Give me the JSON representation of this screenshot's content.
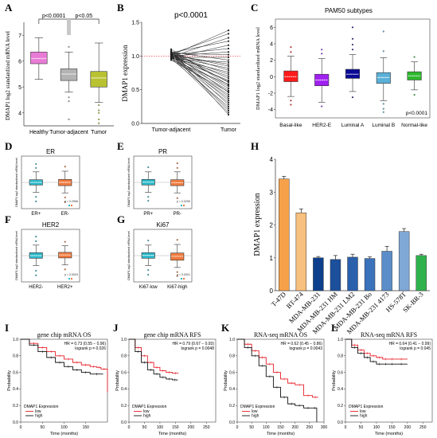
{
  "figure": {
    "panel_letters": [
      "A",
      "B",
      "C",
      "D",
      "E",
      "F",
      "G",
      "H",
      "I",
      "J",
      "K",
      "L"
    ]
  },
  "chart_data": [
    {
      "id": "A",
      "type": "box",
      "ylabel": "DMAP1 log2 standardized mRNA level",
      "categories": [
        "Healthy",
        "Tumor-adjacent",
        "Tumor"
      ],
      "ylim": [
        3.5,
        7.5
      ],
      "yticks": [
        4,
        5,
        6,
        7
      ],
      "boxes": [
        {
          "min": 5.3,
          "q1": 5.9,
          "median": 6.1,
          "q3": 6.35,
          "max": 6.9,
          "color": "#e87bd6",
          "outliers": []
        },
        {
          "min": 4.8,
          "q1": 5.25,
          "median": 5.5,
          "q3": 5.7,
          "max": 6.35,
          "color": "#b3b3b3",
          "outliers": [
            4.6,
            4.45,
            3.75,
            6.55
          ]
        },
        {
          "min": 4.4,
          "q1": 5.0,
          "median": 5.35,
          "q3": 5.6,
          "max": 6.7,
          "color": "#b9c230",
          "outliers": [
            4.3,
            4.1,
            4.0,
            3.75,
            3.6
          ]
        }
      ],
      "comparisons": [
        {
          "from": 0,
          "to": 1,
          "label": "p<0.0001"
        },
        {
          "from": 1,
          "to": 2,
          "label": "p<0.05"
        }
      ]
    },
    {
      "id": "B",
      "type": "paired-line",
      "title": "p<0.0001",
      "ylabel": "DMAP1 expression",
      "categories": [
        "Tumor-adjacent",
        "Tumor"
      ],
      "ylim": [
        0,
        1.5
      ],
      "yticks": [
        0.0,
        0.5,
        1.0,
        1.5
      ],
      "reference_line": 1.0,
      "pairs": [
        [
          1.01,
          1.38
        ],
        [
          1.03,
          1.33
        ],
        [
          0.99,
          1.27
        ],
        [
          1.05,
          1.22
        ],
        [
          0.97,
          1.16
        ],
        [
          1.02,
          1.11
        ],
        [
          1.0,
          1.06
        ],
        [
          1.04,
          1.02
        ],
        [
          0.98,
          0.98
        ],
        [
          1.06,
          0.94
        ],
        [
          0.96,
          0.91
        ],
        [
          1.01,
          0.88
        ],
        [
          1.03,
          0.85
        ],
        [
          0.99,
          0.82
        ],
        [
          1.05,
          0.79
        ],
        [
          0.97,
          0.76
        ],
        [
          1.02,
          0.73
        ],
        [
          1.0,
          0.7
        ],
        [
          1.04,
          0.67
        ],
        [
          0.98,
          0.64
        ],
        [
          1.07,
          0.61
        ],
        [
          0.95,
          0.58
        ],
        [
          1.01,
          0.55
        ],
        [
          1.03,
          0.52
        ],
        [
          0.99,
          0.49
        ],
        [
          1.05,
          0.46
        ],
        [
          0.97,
          0.43
        ],
        [
          1.02,
          0.4
        ],
        [
          1.0,
          0.37
        ],
        [
          1.04,
          0.34
        ],
        [
          0.98,
          0.31
        ],
        [
          1.06,
          0.28
        ],
        [
          0.96,
          0.25
        ],
        [
          1.01,
          0.22
        ],
        [
          1.03,
          0.19
        ],
        [
          0.99,
          0.16
        ],
        [
          1.08,
          0.13
        ],
        [
          0.94,
          0.47
        ],
        [
          1.02,
          0.62
        ],
        [
          1.1,
          0.57
        ]
      ]
    },
    {
      "id": "C",
      "type": "box",
      "title": "PAM50 subtypes",
      "ylabel": "DMAP1 log2 standardized mRNA level",
      "categories": [
        "Basal-like",
        "HER2-E",
        "Luminal A",
        "Luminal B",
        "Normal-like"
      ],
      "ylim": [
        -5,
        7
      ],
      "yticks": [
        -4,
        -2,
        0,
        2,
        4,
        6
      ],
      "annotation": "p<0.0001",
      "boxes": [
        {
          "min": -2.4,
          "q1": -0.6,
          "median": 0.0,
          "q3": 0.7,
          "max": 2.5,
          "color": "#ff1a1a",
          "outliers": [
            3.0,
            3.6,
            -2.9,
            -3.4
          ]
        },
        {
          "min": -3.1,
          "q1": -1.1,
          "median": -0.4,
          "q3": 0.3,
          "max": 2.2,
          "color": "#a020f0",
          "outliers": [
            2.8,
            -3.6,
            3.3
          ]
        },
        {
          "min": -1.8,
          "q1": -0.2,
          "median": 0.3,
          "q3": 0.9,
          "max": 2.7,
          "color": "#0a0a96",
          "outliers": [
            3.3,
            3.9,
            4.6,
            6.0,
            -2.5
          ]
        },
        {
          "min": -2.9,
          "q1": -0.8,
          "median": -0.1,
          "q3": 0.5,
          "max": 2.3,
          "color": "#5ab0d8",
          "outliers": [
            -3.3,
            -3.9,
            -4.3,
            3.1,
            5.5
          ]
        },
        {
          "min": -1.6,
          "q1": -0.4,
          "median": 0.1,
          "q3": 0.6,
          "max": 1.8,
          "color": "#2db82d",
          "outliers": [
            2.4,
            -2.2
          ]
        }
      ]
    },
    {
      "id": "D",
      "type": "box",
      "title": "ER",
      "ylabel": "DMAP1 log2 standardized mRNA level",
      "categories": [
        "ER+",
        "ER-"
      ],
      "annotation": "p = 0.2966",
      "ylim": [
        -4,
        4
      ],
      "boxes": [
        {
          "min": -1.5,
          "q1": -0.4,
          "median": 0.0,
          "q3": 0.4,
          "max": 1.6,
          "color": "#2bb8c9",
          "outliers": [
            2.2,
            2.8,
            -2.2,
            -2.9
          ]
        },
        {
          "min": -1.6,
          "q1": -0.5,
          "median": 0.0,
          "q3": 0.45,
          "max": 1.7,
          "color": "#f07b3f",
          "outliers": [
            2.4,
            -2.3,
            -3.0
          ]
        }
      ]
    },
    {
      "id": "E",
      "type": "box",
      "title": "PR",
      "ylabel": "DMAP1 log2 standardized mRNA level",
      "categories": [
        "PR+",
        "PR-"
      ],
      "annotation": "p = 0.0259",
      "ylim": [
        -4,
        4
      ],
      "boxes": [
        {
          "min": -1.5,
          "q1": -0.4,
          "median": 0.05,
          "q3": 0.45,
          "max": 1.6,
          "color": "#2bb8c9",
          "outliers": [
            2.3,
            -2.2,
            -2.8
          ]
        },
        {
          "min": -1.6,
          "q1": -0.5,
          "median": -0.05,
          "q3": 0.4,
          "max": 1.6,
          "color": "#f07b3f",
          "outliers": [
            2.2,
            2.9,
            -2.4
          ]
        }
      ]
    },
    {
      "id": "F",
      "type": "box",
      "title": "HER2",
      "ylabel": "DMAP1 log2 standardized mRNA level",
      "categories": [
        "HER2-",
        "HER2+"
      ],
      "annotation": "p = 0.0003",
      "ylim": [
        -4,
        4
      ],
      "boxes": [
        {
          "min": -1.5,
          "q1": -0.4,
          "median": 0.0,
          "q3": 0.45,
          "max": 1.6,
          "color": "#2bb8c9",
          "outliers": [
            2.2,
            2.9,
            -2.3,
            -3.0
          ]
        },
        {
          "min": -1.4,
          "q1": -0.35,
          "median": 0.1,
          "q3": 0.5,
          "max": 1.5,
          "color": "#f07b3f",
          "outliers": [
            2.1,
            -2.1
          ]
        }
      ]
    },
    {
      "id": "G",
      "type": "box",
      "title": "Ki67",
      "ylabel": "DMAP1 log2 standardized mRNA level",
      "categories": [
        "Ki67-low",
        "Ki67-high"
      ],
      "annotation": "p < 0.0001",
      "ylim": [
        -4,
        4
      ],
      "boxes": [
        {
          "min": -1.5,
          "q1": -0.4,
          "median": 0.05,
          "q3": 0.45,
          "max": 1.6,
          "color": "#2bb8c9",
          "outliers": [
            2.3,
            -2.2,
            -2.9
          ]
        },
        {
          "min": -1.8,
          "q1": -0.7,
          "median": -0.1,
          "q3": 0.4,
          "max": 1.7,
          "color": "#f07b3f",
          "outliers": [
            2.4,
            -2.5,
            -3.1
          ]
        }
      ]
    },
    {
      "id": "H",
      "type": "bar",
      "ylabel": "DMAP1 expression",
      "ylim": [
        0,
        4
      ],
      "yticks": [
        0,
        1,
        2,
        3,
        4
      ],
      "categories": [
        "T-47D",
        "BT-474",
        "MDA-MB-231",
        "MDA-MB-231 HM",
        "MDA-MB-231 LM2",
        "MDA-MB-231 Bo",
        "MDA-MB-231 4173",
        "HS-578T",
        "SK-BR-3"
      ],
      "values": [
        3.4,
        2.37,
        1.0,
        0.95,
        1.02,
        0.98,
        1.2,
        1.8,
        1.07
      ],
      "errors": [
        0.08,
        0.12,
        0.04,
        0.12,
        0.09,
        0.05,
        0.15,
        0.09,
        0.04
      ],
      "colors": [
        "#f6a14a",
        "#f8c07e",
        "#0d3f8c",
        "#1c4f9c",
        "#2a60ac",
        "#3a72bb",
        "#5b8ec8",
        "#7fa8d6",
        "#2fb24c"
      ]
    },
    {
      "id": "I",
      "type": "line",
      "title": "gene chip mRNA OS",
      "xlabel": "Time (months)",
      "ylabel": "Probability",
      "xlim": [
        0,
        200
      ],
      "xticks": [
        0,
        50,
        100,
        150
      ],
      "ylim": [
        0,
        1
      ],
      "yticks": [
        0.0,
        0.2,
        0.4,
        0.6,
        0.8,
        1.0
      ],
      "stats": [
        "HR = 0.73 (0.55 − 0.96)",
        "logrank p = 0.026"
      ],
      "legend_title": "DMAP1 Expression",
      "series": [
        {
          "name": "low",
          "color": "#e8202a",
          "x": [
            0,
            20,
            40,
            60,
            80,
            100,
            120,
            140,
            160,
            175,
            185,
            200
          ],
          "y": [
            1.0,
            0.95,
            0.9,
            0.85,
            0.8,
            0.76,
            0.72,
            0.69,
            0.67,
            0.66,
            0.64,
            0.36
          ]
        },
        {
          "name": "high",
          "color": "#111111",
          "x": [
            0,
            20,
            40,
            60,
            80,
            100,
            120,
            140,
            160,
            190
          ],
          "y": [
            1.0,
            0.93,
            0.85,
            0.78,
            0.72,
            0.67,
            0.63,
            0.6,
            0.58,
            0.58
          ]
        }
      ]
    },
    {
      "id": "J",
      "type": "line",
      "title": "gene chip mRNA RFS",
      "xlabel": "Time (months)",
      "ylabel": "Probability",
      "xlim": [
        0,
        280
      ],
      "xticks": [
        0,
        50,
        100,
        150,
        200,
        250
      ],
      "ylim": [
        0,
        1
      ],
      "yticks": [
        0.0,
        0.2,
        0.4,
        0.6,
        0.8,
        1.0
      ],
      "stats": [
        "HR = 0.79 (0.67 − 0.93)",
        "logrank p = 0.0048"
      ],
      "legend_title": "DMAP1 Expression",
      "series": [
        {
          "name": "low",
          "color": "#e8202a",
          "x": [
            0,
            20,
            40,
            60,
            80,
            100,
            120,
            140,
            160
          ],
          "y": [
            1.0,
            0.9,
            0.8,
            0.72,
            0.66,
            0.62,
            0.6,
            0.59,
            0.59
          ]
        },
        {
          "name": "high",
          "color": "#111111",
          "x": [
            0,
            20,
            40,
            60,
            80,
            100,
            120,
            140,
            155
          ],
          "y": [
            1.0,
            0.85,
            0.72,
            0.63,
            0.58,
            0.54,
            0.52,
            0.51,
            0.5
          ]
        }
      ]
    },
    {
      "id": "K",
      "type": "line",
      "title": "RNA-seq mRNA OS",
      "xlabel": "Time (months)",
      "ylabel": "Probability",
      "xlim": [
        0,
        300
      ],
      "xticks": [
        0,
        50,
        100,
        150,
        200,
        250,
        300
      ],
      "ylim": [
        0,
        1
      ],
      "yticks": [
        0.0,
        0.2,
        0.4,
        0.6,
        0.8,
        1.0
      ],
      "stats": [
        "HR = 0.62 (0.45 − 0.86)",
        "logrank p = 0.0043"
      ],
      "legend_title": "DMAP1 Expression",
      "series": [
        {
          "name": "low",
          "color": "#e8202a",
          "x": [
            0,
            25,
            50,
            75,
            100,
            125,
            150,
            175,
            200,
            230,
            260,
            280
          ],
          "y": [
            1.0,
            0.94,
            0.86,
            0.78,
            0.7,
            0.6,
            0.52,
            0.47,
            0.45,
            0.32,
            0.3,
            0.3
          ]
        },
        {
          "name": "high",
          "color": "#111111",
          "x": [
            0,
            25,
            50,
            75,
            100,
            125,
            150,
            175,
            200,
            230,
            260,
            275
          ],
          "y": [
            1.0,
            0.9,
            0.8,
            0.68,
            0.55,
            0.42,
            0.3,
            0.22,
            0.2,
            0.17,
            0.17,
            0.0
          ]
        }
      ]
    },
    {
      "id": "L",
      "type": "line",
      "title": "RNA-seq mRNA RFS",
      "xlabel": "Time (months)",
      "ylabel": "Probability",
      "xlim": [
        0,
        280
      ],
      "xticks": [
        0,
        50,
        100,
        150,
        200,
        250
      ],
      "ylim": [
        0,
        1
      ],
      "yticks": [
        0.0,
        0.2,
        0.4,
        0.6,
        0.8,
        1.0
      ],
      "stats": [
        "HR = 0.64 (0.41 − 0.99)",
        "logrank p = 0.045"
      ],
      "legend_title": "DMAP1 Expression",
      "series": [
        {
          "name": "low",
          "color": "#e8202a",
          "x": [
            0,
            20,
            40,
            60,
            80,
            100,
            120,
            140,
            160,
            200
          ],
          "y": [
            1.0,
            0.93,
            0.87,
            0.83,
            0.8,
            0.78,
            0.76,
            0.76,
            0.76,
            0.76
          ]
        },
        {
          "name": "high",
          "color": "#111111",
          "x": [
            0,
            20,
            40,
            60,
            80,
            100,
            120,
            140,
            160,
            200
          ],
          "y": [
            1.0,
            0.9,
            0.83,
            0.78,
            0.73,
            0.7,
            0.7,
            0.7,
            0.7,
            0.7
          ]
        }
      ]
    }
  ]
}
